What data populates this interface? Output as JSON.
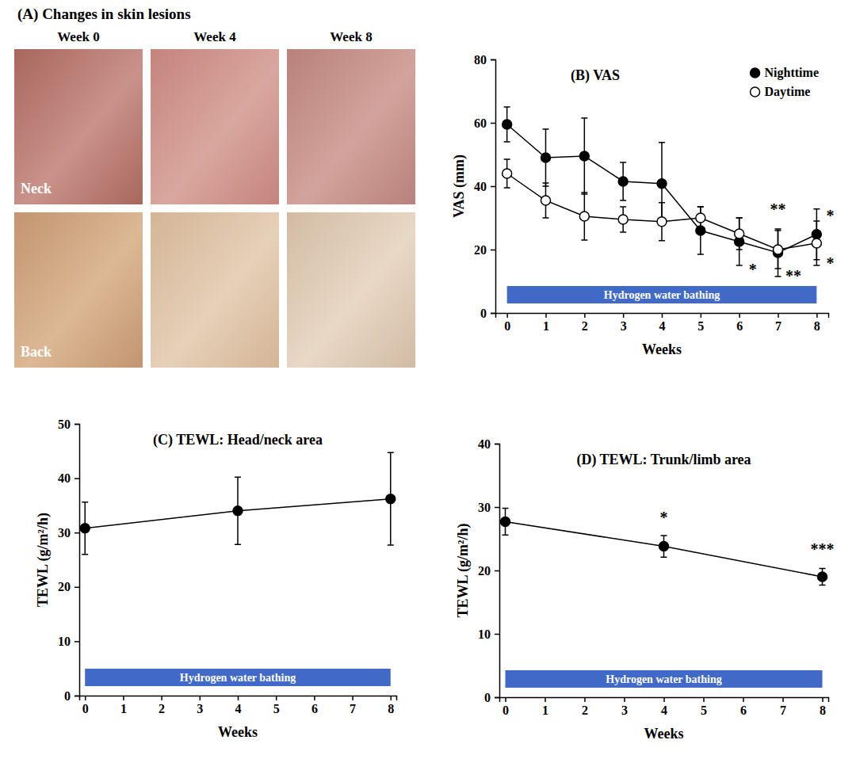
{
  "photo_panel": {
    "title": "(A) Changes in skin lesions",
    "columns": [
      "Week 0",
      "Week 4",
      "Week 8"
    ],
    "rows": [
      "Neck",
      "Back"
    ]
  },
  "chart_data": [
    {
      "type": "line",
      "title": "(B) VAS",
      "xlabel": "Weeks",
      "ylabel": "VAS (mm)",
      "x": [
        0,
        1,
        2,
        3,
        4,
        5,
        6,
        7,
        8
      ],
      "xlim": [
        -0.3,
        8.3
      ],
      "xticks": [
        0,
        1,
        2,
        3,
        4,
        5,
        6,
        7,
        8
      ],
      "ylim": [
        0,
        80
      ],
      "yticks": [
        0,
        20,
        40,
        60,
        80
      ],
      "legend": "upper right",
      "series": [
        {
          "name": "Nighttime",
          "color": "#000000",
          "marker": "filled_circle",
          "values": [
            59.5,
            49,
            49.5,
            41.5,
            40.8,
            26,
            22.5,
            19,
            24.8
          ],
          "errors": [
            5.5,
            9,
            12,
            6,
            13,
            7.5,
            7.5,
            7.5,
            8
          ]
        },
        {
          "name": "Daytime",
          "color": "#000000",
          "marker": "open_circle",
          "values": [
            44,
            35.5,
            30.5,
            29.5,
            28.8,
            30,
            25,
            20,
            22
          ],
          "errors": [
            4.5,
            5.5,
            7.5,
            4,
            6,
            3.5,
            5,
            6,
            7
          ]
        }
      ],
      "span": {
        "text": "Hydrogen water bathing",
        "start": 0,
        "end": 8,
        "color": "#4169c8"
      },
      "annotations": [
        {
          "text": "*",
          "x": 6.35,
          "y": 12
        },
        {
          "text": "**",
          "x": 7,
          "y": 31
        },
        {
          "text": "**",
          "x": 7.4,
          "y": 10
        },
        {
          "text": "*",
          "x": 8.35,
          "y": 29
        },
        {
          "text": "*",
          "x": 8.35,
          "y": 14
        }
      ]
    },
    {
      "type": "line",
      "title": "(C) TEWL: Head/neck area",
      "xlabel": "Weeks",
      "ylabel": "TEWL (g/m²/h)",
      "x": [
        0,
        4,
        8
      ],
      "xlim": [
        -0.15,
        8.15
      ],
      "xticks": [
        0,
        1,
        2,
        3,
        4,
        5,
        6,
        7,
        8
      ],
      "ylim": [
        0,
        50
      ],
      "yticks": [
        0,
        10,
        20,
        30,
        40,
        50
      ],
      "series": [
        {
          "color": "#000000",
          "marker": "filled_circle",
          "values": [
            30.8,
            34,
            36.2
          ],
          "errors": [
            4.8,
            6.2,
            8.5
          ]
        }
      ],
      "span": {
        "text": "Hydrogen water bathing",
        "start": 0,
        "end": 8,
        "color": "#4169c8"
      }
    },
    {
      "type": "line",
      "title": "(D) TEWL: Trunk/limb area",
      "xlabel": "Weeks",
      "ylabel": "TEWL (g/m²/h)",
      "x": [
        0,
        4,
        8
      ],
      "xlim": [
        -0.15,
        8.15
      ],
      "xticks": [
        0,
        1,
        2,
        3,
        4,
        5,
        6,
        7,
        8
      ],
      "ylim": [
        0,
        40
      ],
      "yticks": [
        0,
        10,
        20,
        30,
        40
      ],
      "series": [
        {
          "color": "#000000",
          "marker": "filled_circle",
          "values": [
            27.7,
            23.8,
            19
          ],
          "errors": [
            2.1,
            1.7,
            1.3
          ]
        }
      ],
      "span": {
        "text": "Hydrogen water bathing",
        "start": 0,
        "end": 8,
        "color": "#4169c8"
      },
      "annotations": [
        {
          "text": "*",
          "x": 4,
          "y": 27.5
        },
        {
          "text": "***",
          "x": 8,
          "y": 22.5
        }
      ]
    }
  ]
}
